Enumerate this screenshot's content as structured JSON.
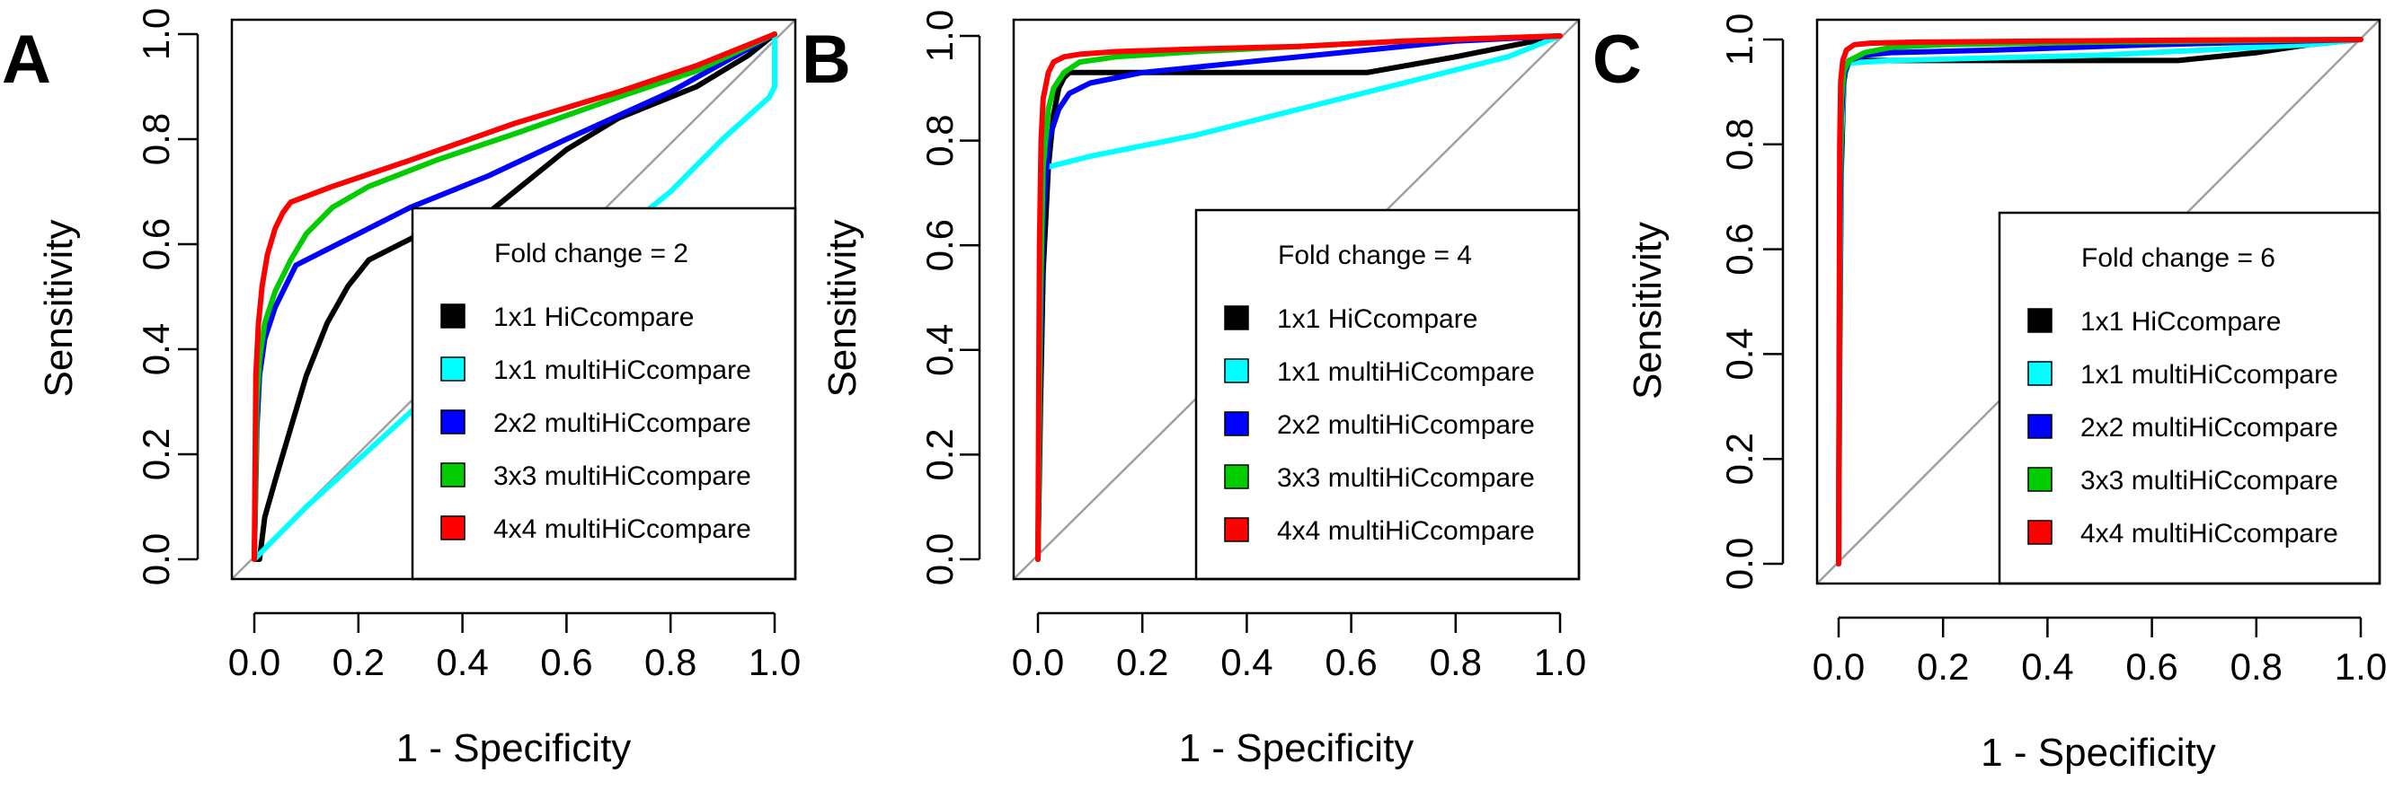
{
  "chart_data": [
    {
      "type": "line",
      "panel_label": "A",
      "legend_title": "Fold change = 2",
      "xlabel": "1 - Specificity",
      "ylabel": "Sensitivity",
      "xlim": [
        0,
        1
      ],
      "ylim": [
        0,
        1
      ],
      "x_ticks": [
        "0.0",
        "0.2",
        "0.4",
        "0.6",
        "0.8",
        "1.0"
      ],
      "y_ticks": [
        "0.0",
        "0.2",
        "0.4",
        "0.6",
        "0.8",
        "1.0"
      ],
      "diagonal": true,
      "legend_placement": "bottom-right",
      "series": [
        {
          "name": "1x1 HiCcompare",
          "color": "#000000",
          "x": [
            0,
            0.01,
            0.02,
            0.04,
            0.07,
            0.1,
            0.14,
            0.18,
            0.22,
            0.28,
            0.32,
            0.38,
            0.45,
            0.5,
            0.55,
            0.6,
            0.65,
            0.7,
            0.75,
            0.8,
            0.85,
            0.9,
            0.95,
            1.0
          ],
          "y": [
            0,
            0.0,
            0.08,
            0.15,
            0.25,
            0.35,
            0.45,
            0.52,
            0.57,
            0.6,
            0.62,
            0.63,
            0.66,
            0.7,
            0.74,
            0.78,
            0.81,
            0.84,
            0.86,
            0.88,
            0.9,
            0.93,
            0.96,
            1.0
          ]
        },
        {
          "name": "1x1 multiHiCcompare",
          "color": "#00ffff",
          "x": [
            0,
            0.02,
            0.05,
            0.1,
            0.2,
            0.3,
            0.4,
            0.5,
            0.6,
            0.7,
            0.8,
            0.9,
            0.99,
            1.0,
            1.0
          ],
          "y": [
            0,
            0.02,
            0.05,
            0.1,
            0.19,
            0.28,
            0.37,
            0.46,
            0.54,
            0.62,
            0.7,
            0.8,
            0.88,
            0.9,
            1.0
          ]
        },
        {
          "name": "2x2 multiHiCcompare",
          "color": "#0000ff",
          "x": [
            0,
            0.005,
            0.01,
            0.02,
            0.04,
            0.06,
            0.08,
            0.12,
            0.2,
            0.3,
            0.45,
            0.6,
            0.8,
            1.0
          ],
          "y": [
            0,
            0.25,
            0.35,
            0.42,
            0.48,
            0.52,
            0.56,
            0.58,
            0.62,
            0.67,
            0.73,
            0.8,
            0.89,
            1.0
          ]
        },
        {
          "name": "3x3 multiHiCcompare",
          "color": "#00cc00",
          "x": [
            0,
            0.005,
            0.01,
            0.02,
            0.04,
            0.07,
            0.1,
            0.15,
            0.22,
            0.35,
            0.5,
            0.7,
            0.85,
            1.0
          ],
          "y": [
            0,
            0.3,
            0.38,
            0.45,
            0.51,
            0.57,
            0.62,
            0.67,
            0.71,
            0.76,
            0.81,
            0.88,
            0.93,
            1.0
          ]
        },
        {
          "name": "4x4 multiHiCcompare",
          "color": "#ff0000",
          "x": [
            0,
            0.003,
            0.008,
            0.015,
            0.025,
            0.04,
            0.055,
            0.07,
            0.15,
            0.3,
            0.5,
            0.7,
            0.85,
            1.0
          ],
          "y": [
            0,
            0.35,
            0.45,
            0.52,
            0.58,
            0.63,
            0.66,
            0.68,
            0.71,
            0.76,
            0.83,
            0.89,
            0.94,
            1.0
          ]
        }
      ]
    },
    {
      "type": "line",
      "panel_label": "B",
      "legend_title": "Fold change = 4",
      "xlabel": "1 - Specificity",
      "ylabel": "Sensitivity",
      "xlim": [
        0,
        1
      ],
      "ylim": [
        0,
        1
      ],
      "x_ticks": [
        "0.0",
        "0.2",
        "0.4",
        "0.6",
        "0.8",
        "1.0"
      ],
      "y_ticks": [
        "0.0",
        "0.2",
        "0.4",
        "0.6",
        "0.8",
        "1.0"
      ],
      "diagonal": true,
      "legend_placement": "bottom-right",
      "series": [
        {
          "name": "1x1 HiCcompare",
          "color": "#000000",
          "x": [
            0,
            0.005,
            0.01,
            0.02,
            0.03,
            0.04,
            0.05,
            0.06,
            0.1,
            0.3,
            0.5,
            0.63,
            0.8,
            0.9,
            1.0
          ],
          "y": [
            0,
            0.3,
            0.55,
            0.75,
            0.85,
            0.9,
            0.92,
            0.93,
            0.93,
            0.93,
            0.93,
            0.93,
            0.96,
            0.98,
            1.0
          ]
        },
        {
          "name": "1x1 multiHiCcompare",
          "color": "#00ffff",
          "x": [
            0,
            0.003,
            0.006,
            0.01,
            0.015,
            0.02,
            0.1,
            0.3,
            0.5,
            0.7,
            0.9,
            1.0
          ],
          "y": [
            0,
            0.3,
            0.6,
            0.72,
            0.745,
            0.75,
            0.77,
            0.81,
            0.86,
            0.91,
            0.96,
            1.0
          ]
        },
        {
          "name": "2x2 multiHiCcompare",
          "color": "#0000ff",
          "x": [
            0,
            0.005,
            0.01,
            0.02,
            0.04,
            0.06,
            0.1,
            0.2,
            0.4,
            0.6,
            0.8,
            1.0
          ],
          "y": [
            0,
            0.4,
            0.65,
            0.8,
            0.86,
            0.89,
            0.91,
            0.93,
            0.95,
            0.97,
            0.99,
            1.0
          ]
        },
        {
          "name": "3x3 multiHiCcompare",
          "color": "#00cc00",
          "x": [
            0,
            0.005,
            0.01,
            0.02,
            0.03,
            0.05,
            0.08,
            0.15,
            0.3,
            0.5,
            0.7,
            1.0
          ],
          "y": [
            0,
            0.5,
            0.75,
            0.86,
            0.9,
            0.93,
            0.95,
            0.96,
            0.97,
            0.98,
            0.99,
            1.0
          ]
        },
        {
          "name": "4x4 multiHiCcompare",
          "color": "#ff0000",
          "x": [
            0,
            0.003,
            0.006,
            0.01,
            0.02,
            0.03,
            0.05,
            0.08,
            0.15,
            0.3,
            0.5,
            0.7,
            1.0
          ],
          "y": [
            0,
            0.6,
            0.8,
            0.88,
            0.93,
            0.95,
            0.96,
            0.965,
            0.97,
            0.975,
            0.98,
            0.99,
            1.0
          ]
        }
      ]
    },
    {
      "type": "line",
      "panel_label": "C",
      "legend_title": "Fold change = 6",
      "xlabel": "1 - Specificity",
      "ylabel": "Sensitivity",
      "xlim": [
        0,
        1
      ],
      "ylim": [
        0,
        1
      ],
      "x_ticks": [
        "0.0",
        "0.2",
        "0.4",
        "0.6",
        "0.8",
        "1.0"
      ],
      "y_ticks": [
        "0.0",
        "0.2",
        "0.4",
        "0.6",
        "0.8",
        "1.0"
      ],
      "diagonal": true,
      "legend_placement": "bottom-right",
      "series": [
        {
          "name": "1x1 HiCcompare",
          "color": "#000000",
          "x": [
            0,
            0.002,
            0.005,
            0.01,
            0.015,
            0.02,
            0.05,
            0.3,
            0.5,
            0.65,
            0.8,
            0.9,
            1.0
          ],
          "y": [
            0,
            0.4,
            0.75,
            0.92,
            0.95,
            0.96,
            0.96,
            0.96,
            0.96,
            0.96,
            0.975,
            0.99,
            1.0
          ]
        },
        {
          "name": "1x1 multiHiCcompare",
          "color": "#00ffff",
          "x": [
            0,
            0.002,
            0.005,
            0.01,
            0.02,
            0.1,
            0.3,
            0.5,
            0.7,
            0.9,
            1.0
          ],
          "y": [
            0,
            0.5,
            0.8,
            0.93,
            0.955,
            0.96,
            0.965,
            0.97,
            0.98,
            0.99,
            1.0
          ]
        },
        {
          "name": "2x2 multiHiCcompare",
          "color": "#0000ff",
          "x": [
            0,
            0.002,
            0.005,
            0.01,
            0.02,
            0.05,
            0.1,
            0.3,
            0.6,
            0.8,
            1.0
          ],
          "y": [
            0,
            0.6,
            0.85,
            0.93,
            0.96,
            0.97,
            0.975,
            0.98,
            0.99,
            0.995,
            1.0
          ]
        },
        {
          "name": "3x3 multiHiCcompare",
          "color": "#00cc00",
          "x": [
            0,
            0.002,
            0.005,
            0.01,
            0.02,
            0.05,
            0.1,
            0.2,
            0.5,
            0.8,
            1.0
          ],
          "y": [
            0,
            0.7,
            0.88,
            0.94,
            0.96,
            0.975,
            0.985,
            0.99,
            0.995,
            0.998,
            1.0
          ]
        },
        {
          "name": "4x4 multiHiCcompare",
          "color": "#ff0000",
          "x": [
            0,
            0.002,
            0.004,
            0.008,
            0.015,
            0.03,
            0.06,
            0.15,
            0.4,
            0.7,
            1.0
          ],
          "y": [
            0,
            0.8,
            0.92,
            0.96,
            0.98,
            0.99,
            0.993,
            0.995,
            0.997,
            0.999,
            1.0
          ]
        }
      ]
    }
  ]
}
